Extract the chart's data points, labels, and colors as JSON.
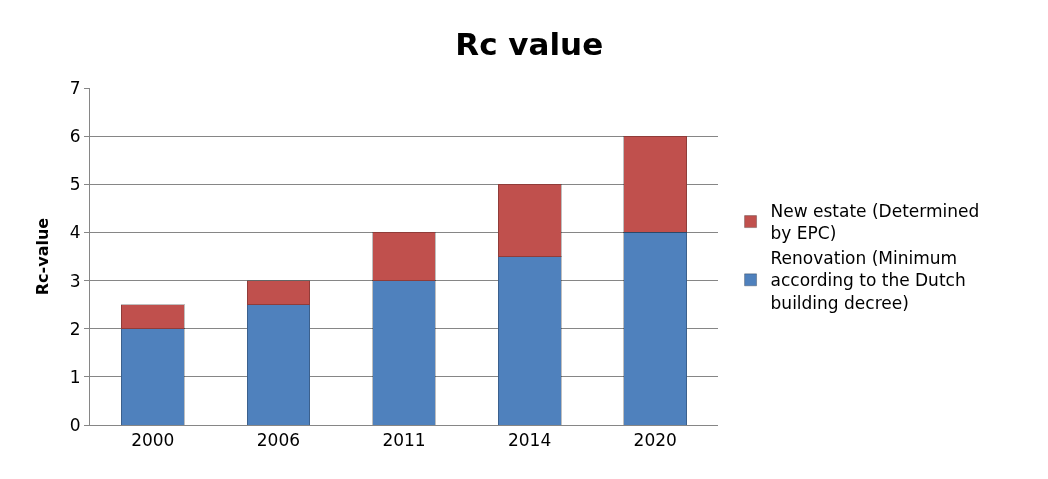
{
  "chart_data": {
    "type": "bar",
    "title": "Rc value",
    "ylabel": "Rc-value",
    "categories": [
      "2000",
      "2006",
      "2011",
      "2014",
      "2020"
    ],
    "stacked": true,
    "series": [
      {
        "name": "Renovation (Minimum according to the Dutch building decree)",
        "color": "#4f81bd",
        "values": [
          2,
          2.5,
          3,
          3.5,
          4
        ]
      },
      {
        "name": "New estate (Determined by EPC)",
        "color": "#c0504d",
        "values": [
          0.5,
          0.5,
          1,
          1.5,
          2
        ]
      }
    ],
    "ylim": [
      0,
      7
    ],
    "yticks": [
      0,
      1,
      2,
      3,
      4,
      5,
      6,
      7
    ],
    "grid": "y",
    "legend": "right"
  }
}
